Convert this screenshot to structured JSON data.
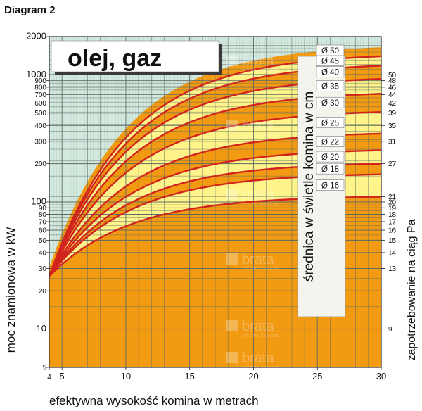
{
  "heading": "Diagram 2",
  "colors": {
    "background_hatch": "#d3e8de",
    "grid": "#5d6b63",
    "band_yellow": "#fef48a",
    "band_orange": "#f29a12",
    "curve": "#d2231e",
    "legend_box": "#f4f4ef",
    "title_box": "#ffffff"
  },
  "chart_data": {
    "type": "line",
    "title": "olej, gaz",
    "xlabel": "efektywna wysokość komina w metrach",
    "ylabel_left": "moc znamionowa w kW",
    "ylabel_right": "zapotrzebowanie na ciąg Pa",
    "diameter_axis_label": "średnica w świetle komina w cm",
    "x_scale": "linear",
    "y_scale": "log",
    "xlim": [
      4,
      30
    ],
    "ylim": [
      5,
      2000
    ],
    "x_ticks": [
      4,
      5,
      10,
      15,
      20,
      25,
      30
    ],
    "y_ticks": [
      5,
      10,
      20,
      30,
      40,
      50,
      60,
      70,
      80,
      90,
      100,
      200,
      300,
      400,
      500,
      600,
      700,
      800,
      900,
      1000,
      2000
    ],
    "y_tick_labels": [
      "5",
      "10",
      "20",
      "30",
      "40",
      "50",
      "60",
      "70",
      "80",
      "90",
      "100",
      "200",
      "300",
      "400",
      "500",
      "600",
      "700",
      "800",
      "900",
      "1000",
      "2000"
    ],
    "right_axis_ticks": [
      {
        "label": "9",
        "kw": 10
      },
      {
        "label": "13",
        "kw": 30
      },
      {
        "label": "14",
        "kw": 40
      },
      {
        "label": "15",
        "kw": 50
      },
      {
        "label": "16",
        "kw": 60
      },
      {
        "label": "17",
        "kw": 70
      },
      {
        "label": "18",
        "kw": 80
      },
      {
        "label": "19",
        "kw": 90
      },
      {
        "label": "20",
        "kw": 100
      },
      {
        "label": "21",
        "kw": 110
      },
      {
        "label": "27",
        "kw": 200
      },
      {
        "label": "31",
        "kw": 300
      },
      {
        "label": "35",
        "kw": 400
      },
      {
        "label": "39",
        "kw": 500
      },
      {
        "label": "42",
        "kw": 600
      },
      {
        "label": "44",
        "kw": 700
      },
      {
        "label": "46",
        "kw": 800
      },
      {
        "label": "48",
        "kw": 900
      },
      {
        "label": "50",
        "kw": 1000
      }
    ],
    "diameter_labels": [
      "Ø 16",
      "Ø 18",
      "Ø 20",
      "Ø 22",
      "Ø 25",
      "Ø 30",
      "Ø 35",
      "Ø 40",
      "Ø 45",
      "Ø 50"
    ],
    "curves": [
      {
        "y_at_30": 110
      },
      {
        "y_at_30": 165
      },
      {
        "y_at_30": 200
      },
      {
        "y_at_30": 255
      },
      {
        "y_at_30": 345
      },
      {
        "y_at_30": 510
      },
      {
        "y_at_30": 710
      },
      {
        "y_at_30": 930
      },
      {
        "y_at_30": 1180
      },
      {
        "y_at_30": 1400
      }
    ],
    "curve_origin": {
      "x": 4,
      "y": 26
    },
    "curve_top_y": 1650,
    "watermark": "brata",
    "watermark_sub": "SYSTEMY KOMINOWE",
    "grid": true
  }
}
